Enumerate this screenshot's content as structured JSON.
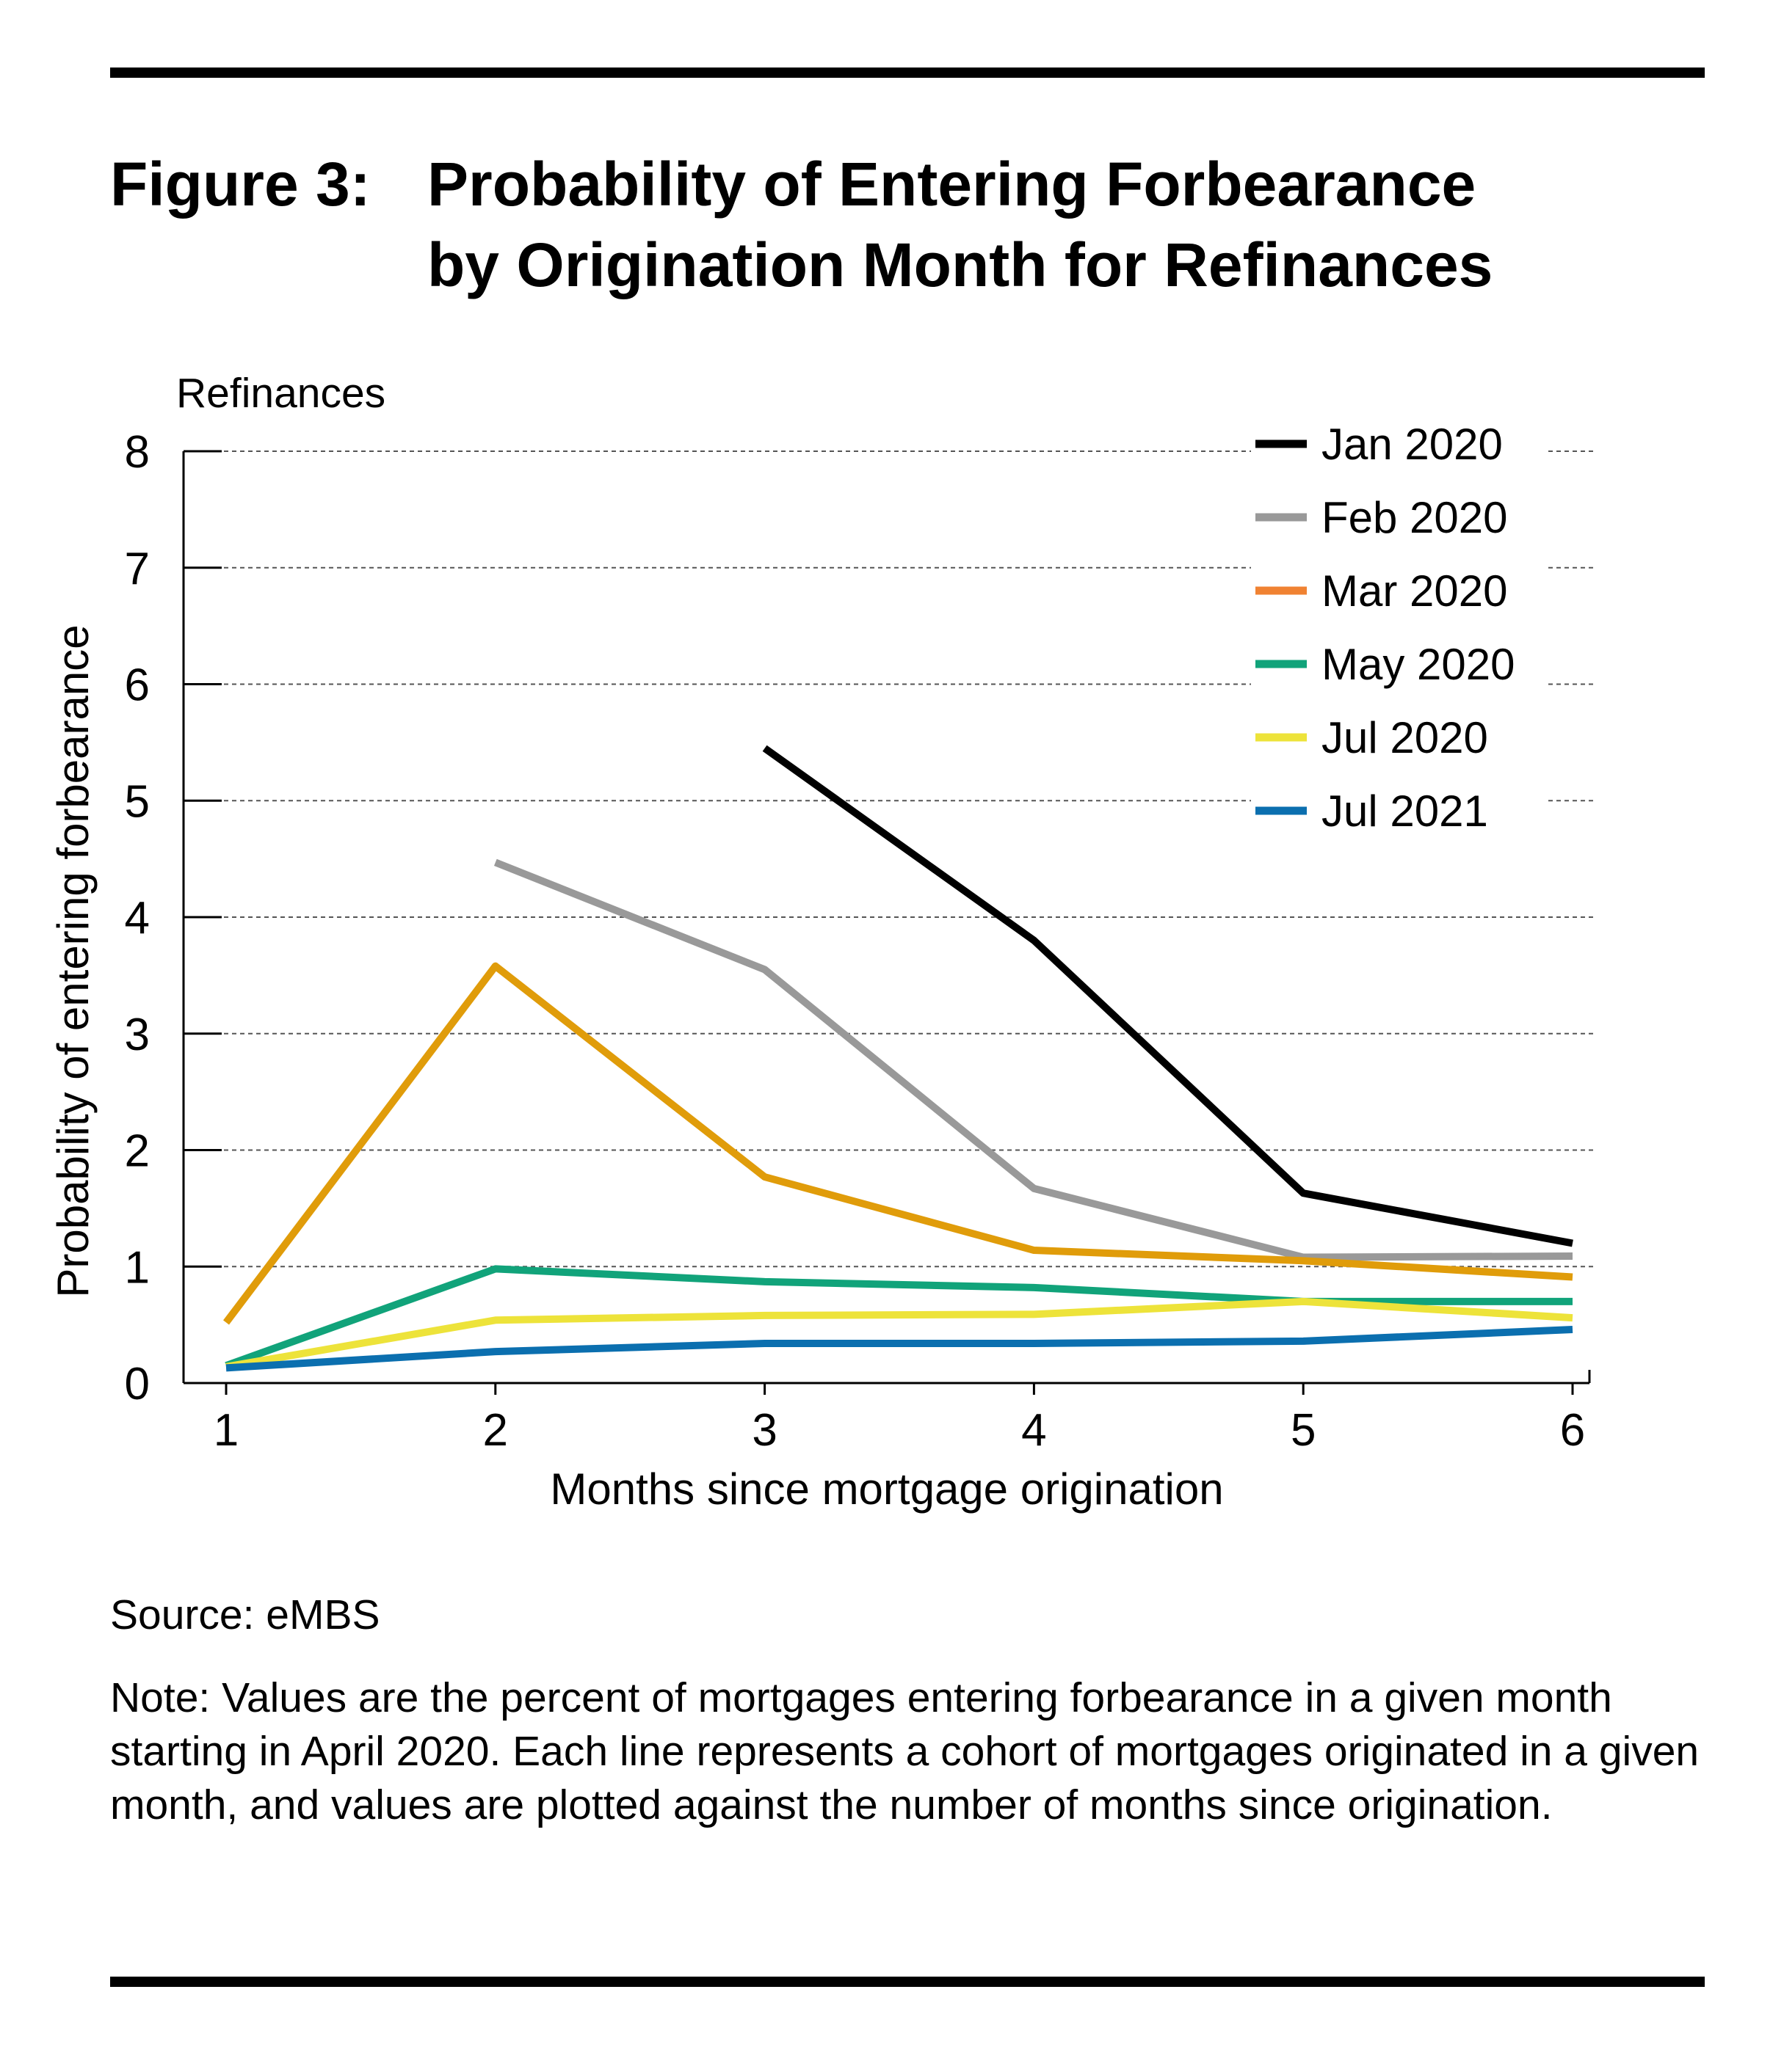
{
  "figure": {
    "label": "Figure 3:",
    "title_line1": "Probability of Entering Forbearance",
    "title_line2": "by Origination Month for Refinances"
  },
  "source": "Source: eMBS",
  "note": "Note: Values are the percent of mortgages entering forbearance in a given month starting in April 2020. Each line represents a cohort of mortgages originated in a given month, and values are plotted against the number of months since origination.",
  "chart_data": {
    "type": "line",
    "subtitle": "Refinances",
    "xlabel": "Months since mortgage origination",
    "ylabel": "Probability of entering forbearance",
    "x": [
      1,
      2,
      3,
      4,
      5,
      6
    ],
    "xlim": [
      1,
      6
    ],
    "ylim": [
      0,
      8
    ],
    "yticks": [
      0,
      1,
      2,
      3,
      4,
      5,
      6,
      7,
      8
    ],
    "grid": "horizontal dashed",
    "legend_position": "top-right",
    "series": [
      {
        "name": "Jan 2020",
        "color": "#000000",
        "values": [
          null,
          null,
          5.45,
          3.8,
          1.63,
          1.2
        ]
      },
      {
        "name": "Feb 2020",
        "color": "#999999",
        "values": [
          null,
          4.47,
          3.55,
          1.67,
          1.08,
          1.09
        ]
      },
      {
        "name": "Mar 2020",
        "color": "#E09C0A",
        "legend_color": "#F08232",
        "values": [
          0.52,
          3.58,
          1.77,
          1.14,
          1.05,
          0.91
        ]
      },
      {
        "name": "May 2020",
        "color": "#11A37A",
        "values": [
          0.15,
          0.98,
          0.87,
          0.82,
          0.7,
          0.7
        ]
      },
      {
        "name": "Jul 2020",
        "color": "#EDE33A",
        "values": [
          0.14,
          0.54,
          0.58,
          0.59,
          0.7,
          0.56
        ]
      },
      {
        "name": "Jul 2021",
        "color": "#0B6FAF",
        "values": [
          0.13,
          0.27,
          0.34,
          0.34,
          0.36,
          0.46
        ]
      }
    ]
  }
}
